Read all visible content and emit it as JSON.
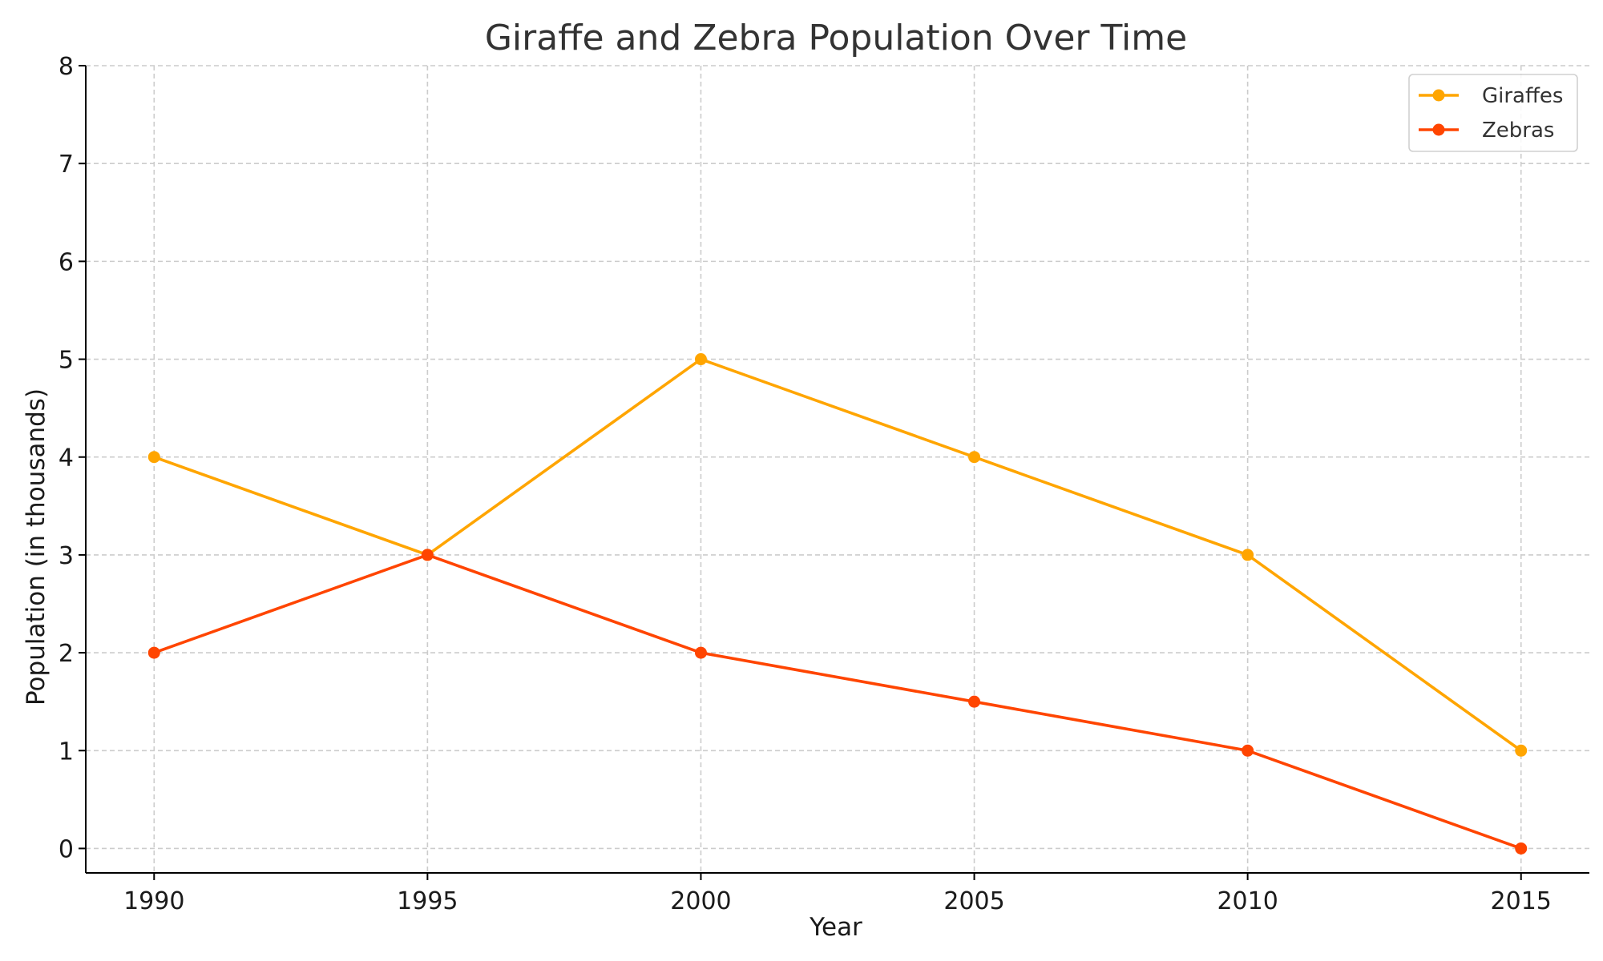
{
  "chart_data": {
    "type": "line",
    "title": "Giraffe and Zebra Population Over Time",
    "xlabel": "Year",
    "ylabel": "Population (in thousands)",
    "x": [
      1990,
      1995,
      2000,
      2005,
      2010,
      2015
    ],
    "x_tick_labels": [
      "1990",
      "1995",
      "2000",
      "2005",
      "2010",
      "2015"
    ],
    "y_ticks": [
      0,
      1,
      2,
      3,
      4,
      5,
      6,
      7,
      8
    ],
    "y_tick_labels": [
      "0",
      "1",
      "2",
      "3",
      "4",
      "5",
      "6",
      "7",
      "8"
    ],
    "xlim": [
      1988.75,
      2016.25
    ],
    "ylim": [
      -0.25,
      8
    ],
    "grid": true,
    "legend_position": "top-right",
    "series": [
      {
        "name": "Giraffes",
        "color": "#FFA500",
        "values": [
          4,
          3,
          5,
          4,
          3,
          1
        ]
      },
      {
        "name": "Zebras",
        "color": "#FF4500",
        "values": [
          2,
          3,
          2,
          1.5,
          1,
          0
        ]
      }
    ]
  }
}
